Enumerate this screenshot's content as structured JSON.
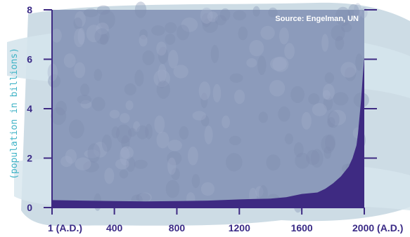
{
  "chart_data": {
    "type": "area",
    "title": "",
    "xlabel": "",
    "ylabel": "(population in billions)",
    "source": "Source: Engelman, UN",
    "x_ticks": [
      {
        "value": 1,
        "label": "1 (A.D.)"
      },
      {
        "value": 400,
        "label": "400"
      },
      {
        "value": 800,
        "label": "800"
      },
      {
        "value": 1200,
        "label": "1200"
      },
      {
        "value": 1600,
        "label": "1600"
      },
      {
        "value": 2000,
        "label": "2000 (A.D.)"
      }
    ],
    "y_ticks": [
      {
        "value": 0,
        "label": "0"
      },
      {
        "value": 2,
        "label": "2"
      },
      {
        "value": 4,
        "label": "4"
      },
      {
        "value": 6,
        "label": "6"
      },
      {
        "value": 8,
        "label": "8"
      }
    ],
    "xlim": [
      1,
      2000
    ],
    "ylim": [
      0,
      8
    ],
    "grid": false,
    "series": [
      {
        "x": [
          1,
          200,
          400,
          600,
          800,
          1000,
          1200,
          1300,
          1400,
          1500,
          1600,
          1700,
          1750,
          1800,
          1850,
          1900,
          1925,
          1950,
          1960,
          1970,
          1980,
          1990,
          2000
        ],
        "values": [
          0.3,
          0.28,
          0.26,
          0.25,
          0.26,
          0.28,
          0.33,
          0.35,
          0.36,
          0.42,
          0.55,
          0.61,
          0.76,
          0.98,
          1.26,
          1.65,
          2.0,
          2.52,
          3.0,
          3.7,
          4.4,
          5.3,
          6.1
        ]
      }
    ]
  },
  "colors": {
    "area_fill": "#3e2a82",
    "plot_background": "#8c9bbb",
    "axis": "#3e2a82",
    "tick_label": "#3a2a86",
    "ylabel": "#3fb3c6",
    "brush_background": "#c4d6e0"
  }
}
